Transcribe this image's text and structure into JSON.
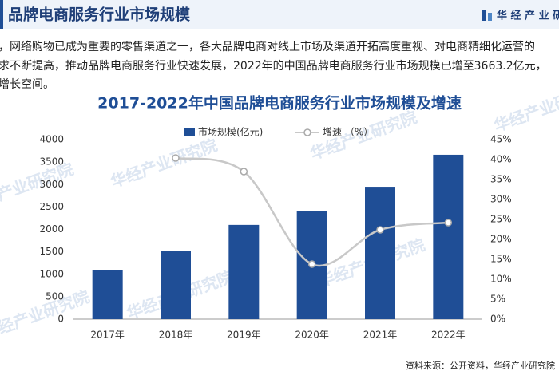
{
  "header": {
    "title": "品牌电商服务行业市场规模",
    "logo": "华 经 产 业 研"
  },
  "paragraph": [
    "，网络购物已成为重要的零售渠道之一，各大品牌电商对线上市场及渠道开拓高度重视、对电商精细化运营的",
    "求不断提高，推动品牌电商服务行业快速发展，2022年的中国品牌电商服务行业市场规模已增至3663.2亿元，",
    "增长空间。"
  ],
  "watermark": "华经产业研究院",
  "chart_data": {
    "type": "bar-line",
    "title": "2017-2022年中国品牌电商服务行业市场规模及增速",
    "categories": [
      "2017年",
      "2018年",
      "2019年",
      "2020年",
      "2021年",
      "2022年"
    ],
    "series": [
      {
        "name": "市场规模(亿元)",
        "color": "#1f4e96",
        "type": "bar",
        "values": [
          1090,
          1520,
          2100,
          2400,
          2950,
          3663.2
        ]
      },
      {
        "name": "增速 （%）",
        "color": "#c8c8c8",
        "type": "line",
        "axis": "y2",
        "values": [
          null,
          40.4,
          37.0,
          13.8,
          22.4,
          24.2
        ]
      }
    ],
    "ylim": [
      0,
      4000
    ],
    "yticks": [
      0,
      500,
      1000,
      1500,
      2000,
      2500,
      3000,
      3500,
      4000
    ],
    "y2lim": [
      0,
      45
    ],
    "y2ticks": [
      {
        "value": 0,
        "label": "0%"
      },
      {
        "value": 5,
        "label": "5%"
      },
      {
        "value": 10,
        "label": "10%"
      },
      {
        "value": 15,
        "label": "15%"
      },
      {
        "value": 20,
        "label": "20%"
      },
      {
        "value": 25,
        "label": "25%"
      },
      {
        "value": 30,
        "label": "30%"
      },
      {
        "value": 35,
        "label": "35%"
      },
      {
        "value": 40,
        "label": "40%"
      },
      {
        "value": 45,
        "label": "45%"
      }
    ],
    "source": "资料来源：公开资料，华经产业研究院"
  }
}
